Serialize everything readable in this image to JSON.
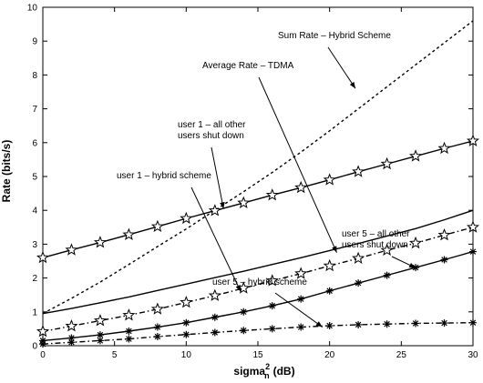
{
  "chart_data": {
    "type": "line",
    "title": "",
    "xlabel": "sigma",
    "xlabel_sup": "2",
    "xlabel_sub": "n",
    "xlabel_suffix": "(dB)",
    "ylabel": "Rate (bits/s)",
    "xlim": [
      0,
      30
    ],
    "ylim": [
      0,
      10
    ],
    "x_ticks": [
      "0",
      "5",
      "10",
      "15",
      "20",
      "25",
      "30"
    ],
    "y_ticks": [
      "0",
      "1",
      "2",
      "3",
      "4",
      "5",
      "6",
      "7",
      "8",
      "9",
      "10"
    ],
    "grid": false,
    "legend": "none",
    "series": [
      {
        "style": "dashed",
        "marker": "none",
        "x": [
          0,
          2,
          4,
          6,
          8,
          10,
          12,
          14,
          16,
          18,
          20,
          22,
          24,
          26,
          28,
          30
        ],
        "y": [
          0.95,
          1.4,
          1.88,
          2.4,
          2.93,
          3.45,
          4.0,
          4.55,
          5.12,
          5.72,
          6.35,
          7.0,
          7.65,
          8.3,
          8.95,
          9.6
        ]
      },
      {
        "style": "solid",
        "marker": "star",
        "x": [
          0,
          2,
          4,
          6,
          8,
          10,
          12,
          14,
          16,
          18,
          20,
          22,
          24,
          26,
          28,
          30
        ],
        "y": [
          2.6,
          2.83,
          3.05,
          3.28,
          3.52,
          3.76,
          3.99,
          4.22,
          4.45,
          4.67,
          4.9,
          5.14,
          5.37,
          5.6,
          5.83,
          6.05
        ]
      },
      {
        "style": "solid",
        "marker": "none",
        "x": [
          0,
          2,
          4,
          6,
          8,
          10,
          12,
          14,
          16,
          18,
          20,
          22,
          24,
          26,
          28,
          30
        ],
        "y": [
          0.95,
          1.1,
          1.27,
          1.44,
          1.63,
          1.82,
          2.01,
          2.2,
          2.4,
          2.6,
          2.81,
          3.02,
          3.24,
          3.46,
          3.72,
          4.0
        ]
      },
      {
        "style": "dashdot",
        "marker": "star",
        "x": [
          0,
          2,
          4,
          6,
          8,
          10,
          12,
          14,
          16,
          18,
          20,
          22,
          24,
          26,
          28,
          30
        ],
        "y": [
          0.42,
          0.58,
          0.74,
          0.9,
          1.08,
          1.28,
          1.48,
          1.7,
          1.92,
          2.13,
          2.36,
          2.58,
          2.82,
          3.03,
          3.27,
          3.5
        ]
      },
      {
        "style": "solid",
        "marker": "asterisk",
        "x": [
          0,
          2,
          4,
          6,
          8,
          10,
          12,
          14,
          16,
          18,
          20,
          22,
          24,
          26,
          28,
          30
        ],
        "y": [
          0.15,
          0.23,
          0.32,
          0.43,
          0.55,
          0.68,
          0.84,
          1.0,
          1.18,
          1.38,
          1.62,
          1.85,
          2.08,
          2.31,
          2.54,
          2.78
        ]
      },
      {
        "style": "dashdot",
        "marker": "asterisk",
        "x": [
          0,
          2,
          4,
          6,
          8,
          10,
          12,
          14,
          16,
          18,
          20,
          22,
          24,
          26,
          28,
          30
        ],
        "y": [
          0.05,
          0.1,
          0.15,
          0.2,
          0.27,
          0.33,
          0.39,
          0.45,
          0.5,
          0.55,
          0.59,
          0.62,
          0.64,
          0.66,
          0.67,
          0.68
        ]
      }
    ],
    "annotations": [
      {
        "lines": [
          "Sum Rate – Hybrid Scheme"
        ],
        "arrow_to": [
          21.8,
          7.6
        ]
      },
      {
        "lines": [
          "Average Rate – TDMA"
        ],
        "arrow_to": [
          20.5,
          2.75
        ]
      },
      {
        "lines": [
          "user 1 – all other",
          "users shut down"
        ],
        "arrow_to": [
          12.6,
          4.05
        ]
      },
      {
        "lines": [
          "user 1 – hybrid scheme"
        ],
        "arrow_to": [
          13.8,
          1.6
        ]
      },
      {
        "lines": [
          "user 5 – all other",
          "users shut down"
        ],
        "arrow_to": [
          26.0,
          2.3
        ]
      },
      {
        "lines": [
          "user 5 – hybrid scheme"
        ],
        "arrow_to": [
          19.5,
          0.55
        ]
      }
    ]
  }
}
